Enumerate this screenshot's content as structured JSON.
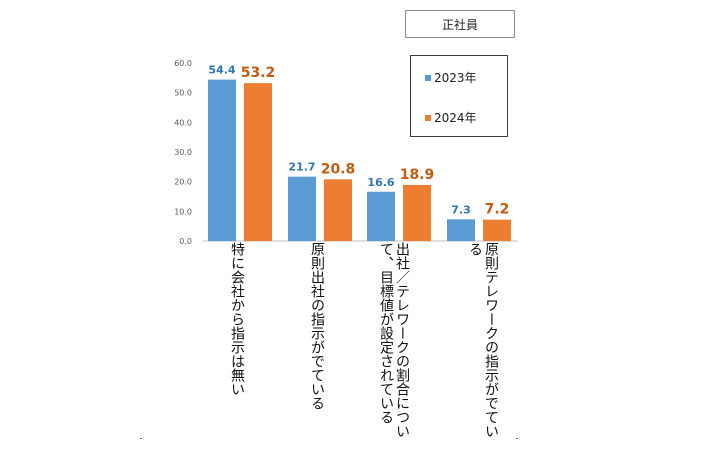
{
  "badge": "正社員",
  "chart_data": {
    "type": "bar",
    "title": "",
    "xlabel": "",
    "ylabel": "",
    "ylim": [
      0,
      60
    ],
    "yticks": [
      "0.0",
      "10.0",
      "20.0",
      "30.0",
      "40.0",
      "50.0",
      "60.0"
    ],
    "categories": [
      "特に会社から指示は無い",
      "原則出社の指示がでている",
      "出社／テレワークの割合について、目標値が設定されている",
      "原則テレワークの指示がでている"
    ],
    "series": [
      {
        "name": "2023年",
        "color": "#5b9bd5",
        "label_color": "#2e75b6",
        "values": [
          54.4,
          21.7,
          16.6,
          7.3
        ],
        "labels": [
          "54.4",
          "21.7",
          "16.6",
          "7.3"
        ]
      },
      {
        "name": "2024年",
        "color": "#ed7d31",
        "label_color": "#c55a11",
        "values": [
          53.2,
          20.8,
          18.9,
          7.2
        ],
        "labels": [
          "53.2",
          "20.8",
          "18.9",
          "7.2"
        ]
      }
    ],
    "legend_position": "top-right",
    "grid": false
  }
}
